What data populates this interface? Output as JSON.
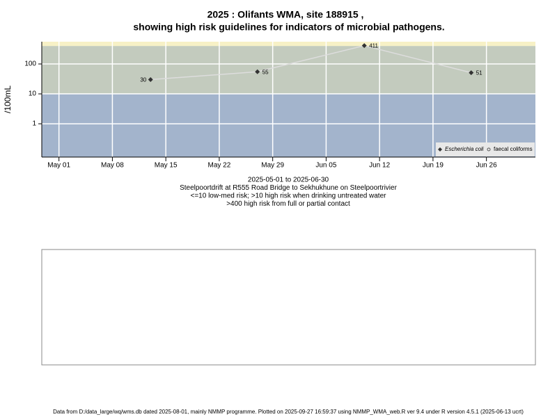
{
  "chart_data": {
    "type": "line",
    "title": "2025 : Olifants WMA, site 188915 ,",
    "subtitle": "showing high risk guidelines for indicators of microbial pathogens.",
    "ylabel": "/100mL",
    "y_log": true,
    "ylim": [
      0.077,
      555
    ],
    "yticks": [
      1,
      10,
      100
    ],
    "xlim": [
      "2025-04-28T18:00:00Z",
      "2025-07-02T10:00:00Z"
    ],
    "xticks": [
      {
        "value": "2025-05-01",
        "label": "May 01"
      },
      {
        "value": "2025-05-08",
        "label": "May 08"
      },
      {
        "value": "2025-05-15",
        "label": "May 15"
      },
      {
        "value": "2025-05-22",
        "label": "May 22"
      },
      {
        "value": "2025-05-29",
        "label": "May 29"
      },
      {
        "value": "2025-06-05",
        "label": "Jun 05"
      },
      {
        "value": "2025-06-12",
        "label": "Jun 12"
      },
      {
        "value": "2025-06-19",
        "label": "Jun 19"
      },
      {
        "value": "2025-06-26",
        "label": "Jun 26"
      }
    ],
    "grid": true,
    "band_edges": [
      10,
      400
    ],
    "band_colors": [
      "#a3b4cc",
      "#c3cbbe",
      "#f7f1c6"
    ],
    "x": [
      "2025-05-13",
      "2025-05-27",
      "2025-06-10",
      "2025-06-24"
    ],
    "series": [
      {
        "name": "Escherichia coli",
        "color": "#333333",
        "line_color": "#dddddd",
        "marker": "diamond",
        "values": [
          30,
          55,
          411,
          51
        ]
      },
      {
        "name": "faecal coliforms",
        "color": "#555555",
        "marker": "circle",
        "values": [
          null,
          null,
          null,
          null
        ]
      }
    ],
    "legend": "bottom-right",
    "notes": [
      "2025-05-01 to 2025-06-30",
      "Steelpoortdrift at R555 Road Bridge to Sekhukhune on Steelpoortrivier",
      "<=10 low-med risk; >10 high risk when drinking untreated water",
      ">400 high risk from full or partial contact"
    ],
    "footer": "Data from D:/data_large/wq/wms.db dated 2025-08-01, mainly NMMP programme. Plotted on 2025-09-27 16:59:37 using NMMP_WMA_web.R ver 9.4 under R version 4.5.1 (2025-06-13 ucrt)"
  }
}
